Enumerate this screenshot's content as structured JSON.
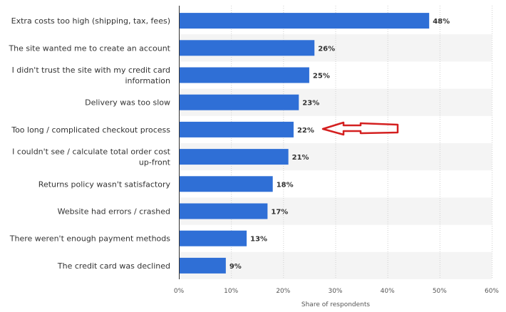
{
  "chart_data": {
    "type": "bar",
    "orientation": "horizontal",
    "categories": [
      [
        "Extra costs too high (shipping, tax, fees)"
      ],
      [
        "The site wanted me to create an account"
      ],
      [
        "I didn't trust the site with my credit card",
        "information"
      ],
      [
        "Delivery was too slow"
      ],
      [
        "Too long / complicated checkout process"
      ],
      [
        "I couldn't see / calculate total order cost",
        "up-front"
      ],
      [
        "Returns policy wasn't satisfactory"
      ],
      [
        "Website had errors / crashed"
      ],
      [
        "There weren't enough payment methods"
      ],
      [
        "The credit card was declined"
      ]
    ],
    "values": [
      48,
      26,
      25,
      23,
      22,
      21,
      18,
      17,
      13,
      9
    ],
    "value_labels": [
      "48%",
      "26%",
      "25%",
      "23%",
      "22%",
      "21%",
      "18%",
      "17%",
      "13%",
      "9%"
    ],
    "xlabel": "Share of respondents",
    "xlim": [
      0,
      60
    ],
    "xticks": [
      0,
      10,
      20,
      30,
      40,
      50,
      60
    ],
    "xtick_labels": [
      "0%",
      "10%",
      "20%",
      "30%",
      "40%",
      "50%",
      "60%"
    ],
    "grid": "vertical dotted",
    "annotation": "red arrow pointing to 22% bar",
    "colors": {
      "bar": "#2f6fd6",
      "band": "#f4f4f4",
      "grid": "#cfcfcf",
      "arrow": "#d42020"
    }
  }
}
